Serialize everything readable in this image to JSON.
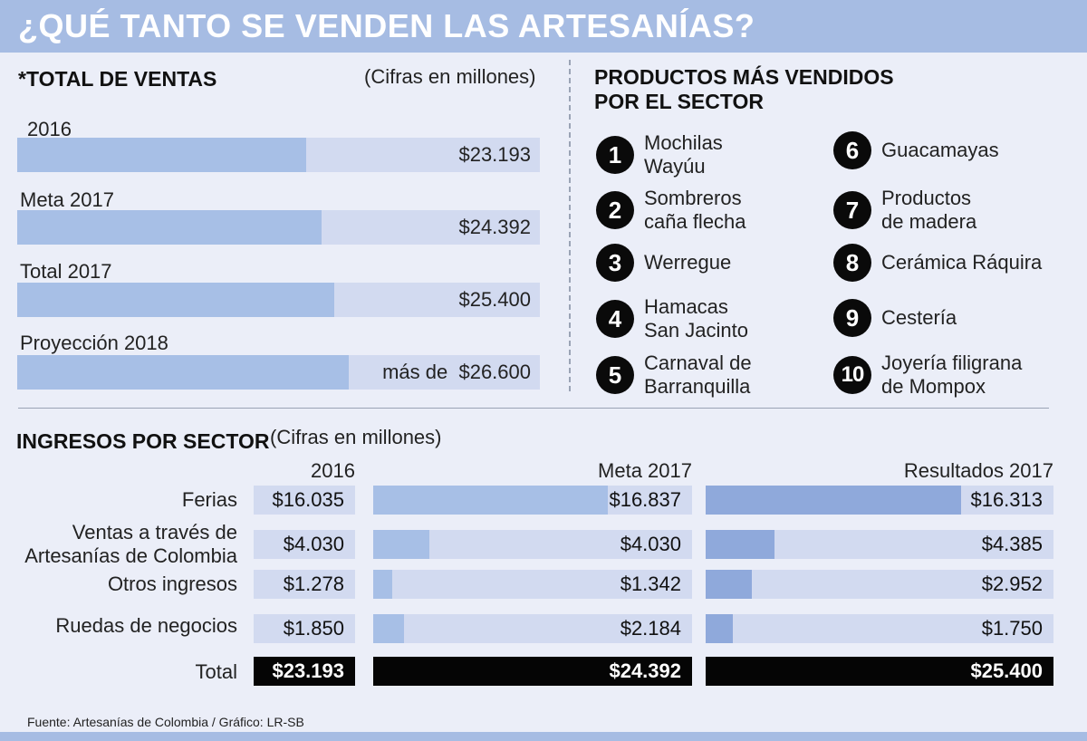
{
  "title": "¿QUÉ TANTO SE VENDEN LAS ARTESANÍAS?",
  "colors": {
    "header": "#a6bce3",
    "bar_fill": "#a7bfe6",
    "bar_track": "#d2daf0",
    "total_cell": "#050505",
    "background": "#ebeef8"
  },
  "total_ventas": {
    "heading": "*TOTAL DE VENTAS",
    "note": "(Cifras en millones)",
    "items": [
      {
        "label": "2016",
        "value_text": "$23.193"
      },
      {
        "label": "Meta 2017",
        "value_text": "$24.392"
      },
      {
        "label": "Total 2017",
        "value_text": "$25.400"
      },
      {
        "label": "Proyección 2018",
        "prefix": "más de",
        "value_text": "$26.600"
      }
    ]
  },
  "productos": {
    "heading_line1": "PRODUCTOS MÁS VENDIDOS",
    "heading_line2": "POR EL SECTOR",
    "items": [
      {
        "num": "1",
        "text": "Mochilas\nWayúu"
      },
      {
        "num": "2",
        "text": "Sombreros\ncaña flecha"
      },
      {
        "num": "3",
        "text": "Werregue"
      },
      {
        "num": "4",
        "text": "Hamacas\nSan Jacinto"
      },
      {
        "num": "5",
        "text": "Carnaval de\nBarranquilla"
      },
      {
        "num": "6",
        "text": "Guacamayas"
      },
      {
        "num": "7",
        "text": "Productos\nde madera"
      },
      {
        "num": "8",
        "text": "Cerámica Ráquira"
      },
      {
        "num": "9",
        "text": "Cestería"
      },
      {
        "num": "10",
        "text": "Joyería filigrana\nde Mompox"
      }
    ]
  },
  "ingresos": {
    "heading": "INGRESOS POR SECTOR",
    "note": "(Cifras en millones)",
    "columns": [
      "2016",
      "Meta 2017",
      "Resultados 2017"
    ],
    "rows": [
      {
        "label": "Ferias",
        "values_text": [
          "$16.035",
          "$16.837",
          "$16.313"
        ]
      },
      {
        "label": "Ventas a través de\nArtesanías de Colombia",
        "values_text": [
          "$4.030",
          "$4.030",
          "$4.385"
        ]
      },
      {
        "label": "Otros ingresos",
        "values_text": [
          "$1.278",
          "$1.342",
          "$2.952"
        ]
      },
      {
        "label": "Ruedas de negocios",
        "values_text": [
          "$1.850",
          "$2.184",
          "$1.750"
        ]
      }
    ],
    "total_label": "Total",
    "totals_text": [
      "$23.193",
      "$24.392",
      "$25.400"
    ]
  },
  "source": "Fuente: Artesanías de Colombia  / Gráfico: LR-SB",
  "chart_data": [
    {
      "type": "bar",
      "categories": [
        "2016",
        "Meta 2017",
        "Total 2017",
        "Proyección 2018"
      ],
      "values": [
        23193,
        24392,
        25400,
        26600
      ],
      "title": "*TOTAL DE VENTAS",
      "xlabel": "",
      "ylabel": "(Cifras en millones)"
    },
    {
      "type": "bar",
      "categories": [
        "Ferias",
        "Ventas a través de Artesanías de Colombia",
        "Otros ingresos",
        "Ruedas de negocios"
      ],
      "series": [
        {
          "name": "2016",
          "values": [
            16035,
            4030,
            1278,
            1850
          ]
        },
        {
          "name": "Meta 2017",
          "values": [
            16837,
            4030,
            1342,
            2184
          ]
        },
        {
          "name": "Resultados 2017",
          "values": [
            16313,
            4385,
            2952,
            1750
          ]
        }
      ],
      "totals": [
        23193,
        24392,
        25400
      ],
      "title": "INGRESOS POR SECTOR",
      "xlabel": "",
      "ylabel": "(Cifras en millones)"
    }
  ]
}
